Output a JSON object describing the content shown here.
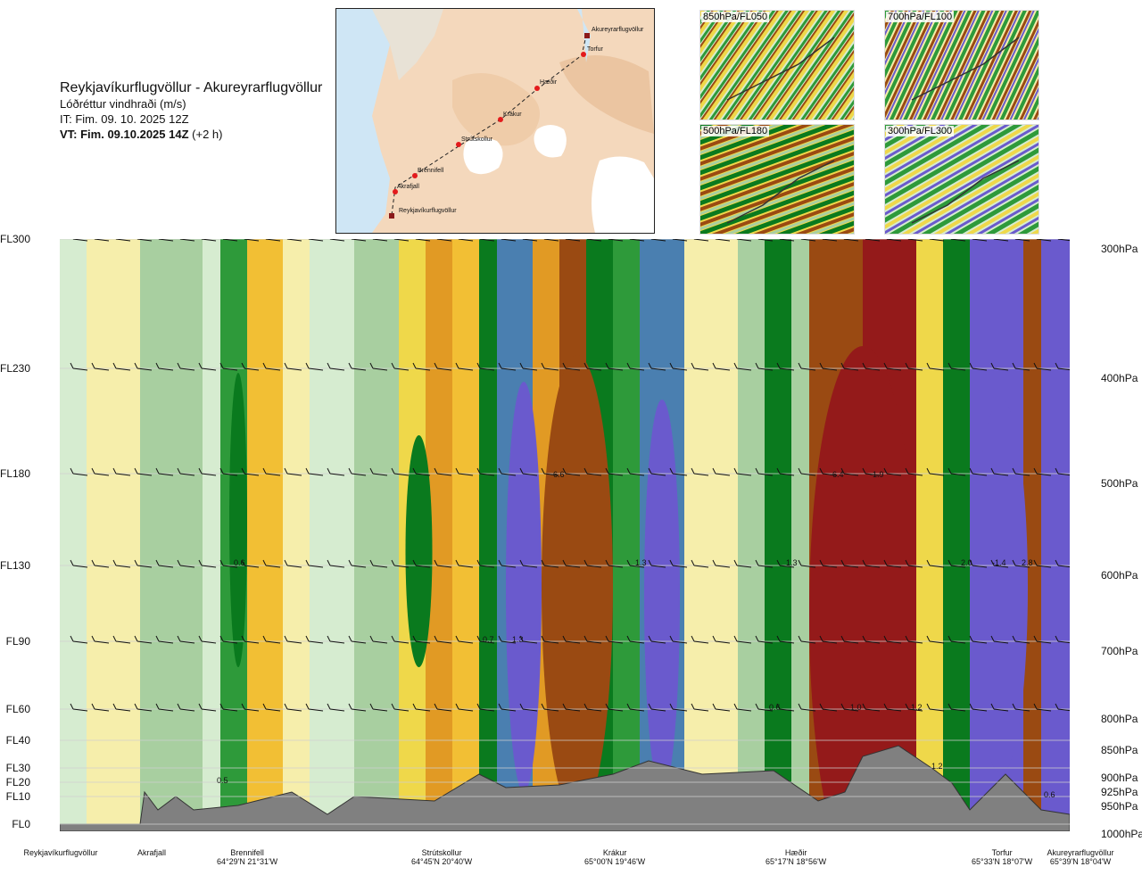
{
  "title": {
    "route": "Reykjavíkurflugvöllur - Akureyrarflugvöllur",
    "variable": "Lóðréttur vindhraði (m/s)",
    "issue_time": "IT: Fim. 09. 10. 2025 12Z",
    "valid_time_bold": "VT: Fim. 09.10.2025 14Z",
    "valid_time_offset": "(+2 h)"
  },
  "route_map": {
    "points": [
      {
        "name": "Akureyrarflugvöllur"
      },
      {
        "name": "Torfur"
      },
      {
        "name": "Hæðir"
      },
      {
        "name": "Krákur"
      },
      {
        "name": "Strútskollur"
      },
      {
        "name": "Brennifell"
      },
      {
        "name": "Akrafjall"
      },
      {
        "name": "Reykjavíkurflugvöllur"
      }
    ]
  },
  "thumbnails": [
    {
      "label": "850hPa/FL050"
    },
    {
      "label": "700hPa/FL100"
    },
    {
      "label": "500hPa/FL180"
    },
    {
      "label": "300hPa/FL300"
    }
  ],
  "chart_data": {
    "type": "heatmap",
    "title": "Reykjavíkurflugvöllur - Akureyrarflugvöllur",
    "levels": [
      {
        "fl": "FL300",
        "hpa": "300hPa"
      },
      {
        "fl": "FL230",
        "hpa": "400hPa"
      },
      {
        "fl": "FL180",
        "hpa": "500hPa"
      },
      {
        "fl": "FL130",
        "hpa": "600hPa"
      },
      {
        "fl": "FL90",
        "hpa": "700hPa"
      },
      {
        "fl": "FL60",
        "hpa": "800hPa"
      },
      {
        "fl": "FL40",
        "hpa": "850hPa"
      },
      {
        "fl": "FL30",
        "hpa": "900hPa"
      },
      {
        "fl": "FL20",
        "hpa": "925hPa"
      },
      {
        "fl": "FL10",
        "hpa": "950hPa"
      },
      {
        "fl": "FL0",
        "hpa": "1000hPa"
      }
    ],
    "stations": [
      {
        "name": "Reykjavíkurflugvöllur",
        "coord": ""
      },
      {
        "name": "Akrafjall",
        "coord": ""
      },
      {
        "name": "Brennifell",
        "coord": "64°29'N 21°31'W"
      },
      {
        "name": "Strútskollur",
        "coord": "64°45'N 20°40'W"
      },
      {
        "name": "Krákur",
        "coord": "65°00'N 19°46'W"
      },
      {
        "name": "Hæðir",
        "coord": "65°17'N 18°56'W"
      },
      {
        "name": "Torfur",
        "coord": "65°33'N 18°07'W"
      },
      {
        "name": "Akureyrarflugvöllur",
        "coord": "65°39'N 18°04'W"
      }
    ],
    "annotations": [
      "0.6",
      "-6.6",
      "1.3",
      "1.3",
      "2.0",
      "2.8",
      "0.7",
      "1.3",
      "0.6",
      "1.0",
      "1.2",
      "0.5",
      "1.2",
      "0.6",
      "-6.4",
      "-1.9",
      "-1.4"
    ],
    "colors": {
      "strong_up": "#6a5acd",
      "up": "#4a7fb0",
      "green_dark": "#0a7a1e",
      "green": "#2e9a3a",
      "green_light": "#a8cfa0",
      "green_pale": "#d6ecd0",
      "neutral": "#fbf7cf",
      "yellow_pale": "#f6eeab",
      "yellow": "#efd84a",
      "orange_light": "#f2bf34",
      "orange": "#e19a24",
      "brown": "#9a4a12",
      "red_dark": "#941a1a",
      "terrain": "#808080"
    }
  }
}
